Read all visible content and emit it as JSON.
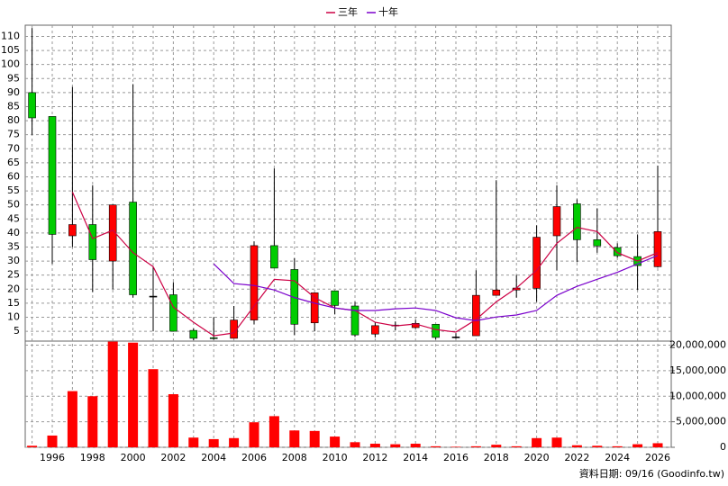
{
  "chart_data": [
    {
      "type": "candlestick",
      "categories": [
        null,
        "1996",
        null,
        "1998",
        null,
        "2000",
        null,
        "2002",
        null,
        "2004",
        null,
        "2006",
        null,
        "2008",
        null,
        "2010",
        null,
        "2012",
        null,
        "2014",
        null,
        "2016",
        null,
        "2018",
        null,
        "2020",
        null,
        "2022",
        null,
        "2024",
        null,
        "2026"
      ],
      "open": [
        90,
        81.5,
        39,
        43,
        30,
        51,
        17.5,
        18,
        5.3,
        2.7,
        2.5,
        9,
        35.5,
        27,
        8,
        19.4,
        14,
        4,
        7.2,
        6.3,
        7.5,
        3,
        3.4,
        17.8,
        19.7,
        20.3,
        39,
        50.4,
        37.6,
        34.8,
        31.6,
        28
      ],
      "high": [
        113,
        81.5,
        92,
        57,
        50,
        93,
        28,
        22.5,
        6,
        10,
        14,
        37,
        63,
        31,
        18.7,
        19.4,
        15.5,
        8.2,
        8.5,
        9.1,
        7.5,
        4.3,
        26.7,
        58.8,
        25,
        42.7,
        57,
        52,
        48.8,
        36.3,
        39.5,
        64
      ],
      "low": [
        75,
        29,
        35,
        19,
        20,
        17,
        5,
        5,
        1.8,
        2,
        2.5,
        7.5,
        27.5,
        3.7,
        5,
        11,
        3,
        2.8,
        5.3,
        6,
        2.1,
        2.4,
        3.4,
        17.8,
        17,
        15.5,
        26.7,
        29.6,
        33,
        31.2,
        19.7,
        27.7
      ],
      "close": [
        81,
        39.5,
        43,
        30.5,
        50,
        18,
        17.5,
        5,
        2.5,
        2.5,
        9,
        35.5,
        27.5,
        7.5,
        18.7,
        14.2,
        3.7,
        7,
        7.2,
        7.8,
        2.8,
        3,
        17.8,
        19.7,
        20.4,
        38.5,
        49.4,
        37.6,
        35.4,
        31.9,
        28.4,
        40.5
      ],
      "up_color": "#ff0000",
      "down_color": "#00cc00",
      "series": [
        {
          "name": "三年",
          "color": "#cc0044",
          "values": [
            null,
            null,
            54.6,
            38,
            41,
            33,
            28,
            13.6,
            8.2,
            3.4,
            4.4,
            14,
            23.5,
            23,
            17,
            13.3,
            12.4,
            8.2,
            6.9,
            7.6,
            5.6,
            4.7,
            9.2,
            15.5,
            20.4,
            26.7,
            36.3,
            42,
            40.5,
            33,
            30,
            33
          ]
        },
        {
          "name": "十年",
          "color": "#7a00cc",
          "values": [
            null,
            null,
            null,
            null,
            null,
            null,
            null,
            null,
            null,
            29,
            22,
            21.3,
            19.7,
            17,
            15,
            13.3,
            12.4,
            12.4,
            13,
            13.3,
            12.4,
            9.8,
            8.8,
            10.1,
            10.8,
            12.4,
            17.8,
            21,
            23.5,
            26,
            29,
            32
          ]
        }
      ],
      "ylim": [
        1.5,
        114
      ],
      "yticks": [
        5,
        10,
        15,
        20,
        25,
        30,
        35,
        40,
        45,
        50,
        55,
        60,
        65,
        70,
        75,
        80,
        85,
        90,
        95,
        100,
        105,
        110
      ],
      "grid": true
    },
    {
      "type": "bar",
      "values": [
        300000,
        2300000,
        11000000,
        10000000,
        20700000,
        20500000,
        15300000,
        10400000,
        1900000,
        1600000,
        1800000,
        4900000,
        6100000,
        3300000,
        3200000,
        2100000,
        1000000,
        700000,
        600000,
        700000,
        200000,
        100000,
        200000,
        500000,
        200000,
        1800000,
        1900000,
        400000,
        300000,
        200000,
        600000,
        800000
      ],
      "color": "#ff0000",
      "ylim": [
        0,
        20800000
      ],
      "yticks": [
        {
          "value": 0,
          "label": "0"
        },
        {
          "value": 5000000,
          "label": "5,000,000"
        },
        {
          "value": 10000000,
          "label": "10,000,000"
        },
        {
          "value": 15000000,
          "label": "15,000,000"
        },
        {
          "value": 20000000,
          "label": "20,000,000"
        }
      ],
      "grid": true,
      "note": "資料日期: 09/16  (Goodinfo.tw)"
    }
  ]
}
